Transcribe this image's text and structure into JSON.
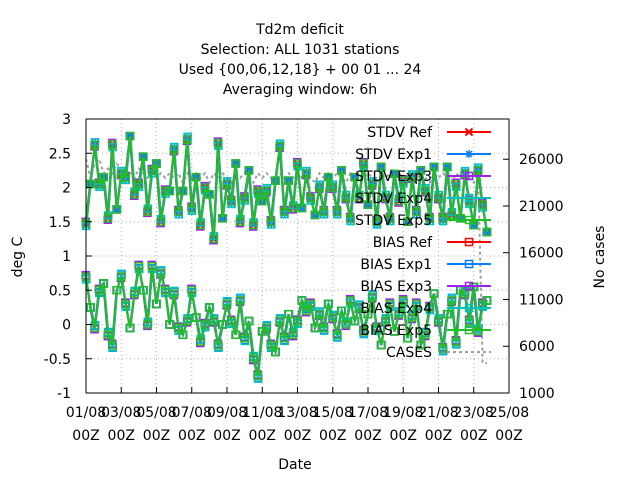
{
  "chart_data": {
    "type": "line",
    "title_lines": [
      "Td2m deficit",
      "Selection: ALL    1031 stations",
      "Used {00,06,12,18} + 00 01 ... 24",
      "Averaging window:  6h"
    ],
    "xlabel": "Date",
    "ylabel": "deg C",
    "y2label": "No cases",
    "x_ticks": [
      {
        "date": "01/08",
        "hour": "00Z"
      },
      {
        "date": "03/08",
        "hour": "00Z"
      },
      {
        "date": "05/08",
        "hour": "00Z"
      },
      {
        "date": "07/08",
        "hour": "00Z"
      },
      {
        "date": "09/08",
        "hour": "00Z"
      },
      {
        "date": "11/08",
        "hour": "00Z"
      },
      {
        "date": "13/08",
        "hour": "00Z"
      },
      {
        "date": "15/08",
        "hour": "00Z"
      },
      {
        "date": "17/08",
        "hour": "00Z"
      },
      {
        "date": "19/08",
        "hour": "00Z"
      },
      {
        "date": "21/08",
        "hour": "00Z"
      },
      {
        "date": "23/08",
        "hour": "00Z"
      },
      {
        "date": "25/08",
        "hour": "00Z"
      }
    ],
    "x_range_days": [
      "01/08 00Z",
      "25/08 00Z"
    ],
    "y_ticks": [
      "-1",
      "-0.5",
      "0",
      "0.5",
      "1",
      "1.5",
      "2",
      "2.5",
      "3"
    ],
    "ylim": [
      -1,
      3
    ],
    "y2_ticks": [
      "1000",
      "6000",
      "11000",
      "16000",
      "21000",
      "26000"
    ],
    "y2lim": [
      1000,
      30300
    ],
    "grid": true,
    "legend_position": "top-right",
    "series": [
      {
        "name": "STDV Ref",
        "color": "#ff0000",
        "marker": "x",
        "axis": "y"
      },
      {
        "name": "STDV Exp1",
        "color": "#0080ff",
        "marker": "asterisk",
        "axis": "y"
      },
      {
        "name": "STDV Exp3",
        "color": "#a020f0",
        "marker": "square",
        "axis": "y"
      },
      {
        "name": "STDV Exp4",
        "color": "#00c0c0",
        "marker": "square",
        "axis": "y"
      },
      {
        "name": "STDV Exp5",
        "color": "#20c020",
        "marker": "square",
        "axis": "y"
      },
      {
        "name": "BIAS Ref",
        "color": "#ff0000",
        "marker": "square",
        "axis": "y"
      },
      {
        "name": "BIAS Exp1",
        "color": "#0080ff",
        "marker": "square",
        "axis": "y"
      },
      {
        "name": "BIAS Exp3",
        "color": "#a020f0",
        "marker": "square",
        "axis": "y"
      },
      {
        "name": "BIAS Exp4",
        "color": "#00c0c0",
        "marker": "square",
        "axis": "y"
      },
      {
        "name": "BIAS Exp5",
        "color": "#20c020",
        "marker": "square",
        "axis": "y"
      },
      {
        "name": "CASES",
        "color": "#a0a0a0",
        "marker": "none",
        "dash": true,
        "axis": "y2"
      }
    ],
    "stdv_values": [
      1.48,
      2.05,
      2.62,
      2.05,
      2.15,
      1.55,
      2.63,
      1.68,
      2.2,
      2.15,
      2.75,
      1.9,
      2.05,
      2.45,
      1.65,
      2.25,
      2.35,
      1.5,
      1.95,
      1.95,
      2.55,
      1.65,
      1.95,
      2.7,
      1.7,
      2.15,
      1.45,
      2.0,
      1.9,
      1.25,
      2.65,
      1.55,
      2.05,
      1.8,
      2.35,
      1.5,
      1.85,
      2.25,
      1.45,
      1.95,
      1.8,
      1.95,
      1.5,
      2.1,
      2.6,
      1.65,
      2.1,
      1.7,
      2.35,
      1.7,
      2.2,
      1.85,
      1.6,
      2.0,
      1.65,
      2.15,
      2.0,
      1.65,
      2.25,
      1.85,
      1.55,
      2.15,
      1.85,
      2.35,
      1.75,
      2.05,
      1.5,
      2.3,
      1.85,
      1.55,
      2.2,
      1.8,
      2.1,
      1.5,
      2.15,
      1.65,
      2.25,
      1.95,
      1.55,
      2.3,
      1.85,
      1.55,
      2.3,
      1.6,
      2.05,
      1.55,
      2.2,
      1.8,
      1.45,
      2.25,
      1.75,
      1.35
    ],
    "bias_values": [
      0.7,
      0.25,
      -0.05,
      0.5,
      0.6,
      -0.15,
      -0.3,
      0.5,
      0.7,
      0.3,
      -0.05,
      0.45,
      0.85,
      0.5,
      0.0,
      0.85,
      0.3,
      0.75,
      0.5,
      0.0,
      0.45,
      -0.05,
      -0.15,
      0.05,
      0.5,
      0.1,
      -0.25,
      0.0,
      0.25,
      0.05,
      -0.3,
      0.0,
      0.3,
      0.05,
      -0.15,
      0.35,
      -0.2,
      0.05,
      -0.5,
      -0.75,
      -0.1,
      -0.05,
      -0.3,
      -0.4,
      0.05,
      -0.2,
      0.15,
      -0.15,
      0.05,
      0.35,
      0.2,
      0.3,
      -0.05,
      0.15,
      -0.05,
      0.3,
      0.1,
      -0.15,
      0.2,
      0.0,
      0.35,
      0.05,
      0.25,
      -0.1,
      0.15,
      0.4,
      -0.05,
      -0.3,
      0.05,
      0.3,
      -0.1,
      0.15,
      0.35,
      -0.2,
      0.1,
      0.3,
      -0.3,
      -0.15,
      0.25,
      0.45,
      0.05,
      -0.35,
      0.15,
      0.35,
      -0.25,
      0.5,
      0.45,
      0.05,
      0.55,
      -0.1,
      0.3,
      0.35
    ],
    "cases_values": [
      26000,
      24000,
      25500,
      26000,
      24500,
      25000,
      24500,
      25500,
      25000,
      23500,
      24500,
      24000,
      25000,
      24500,
      24000,
      24500,
      24000,
      24500,
      24000,
      24500,
      24000,
      24500,
      23500,
      24500,
      24000,
      24500,
      24000,
      24500,
      23500,
      24500,
      24000,
      24500,
      24000,
      23500,
      24500,
      24000,
      24500,
      24000,
      23500,
      24500,
      24000,
      24500,
      24000,
      23500,
      24500,
      24000,
      24500,
      24000,
      24500,
      24000,
      24500,
      24000,
      23500,
      24500,
      24000,
      24500,
      24000,
      24500,
      24000,
      23500,
      24500,
      24000,
      24500,
      24000,
      24500,
      24000,
      23500,
      24500,
      24000,
      24500,
      24000,
      24500,
      24000,
      23500,
      24500,
      24000,
      24500,
      24000,
      23500,
      24500,
      24000,
      24500,
      24000,
      23500,
      24500,
      24000,
      24500,
      24000,
      23500,
      24500,
      4200,
      4200
    ]
  }
}
